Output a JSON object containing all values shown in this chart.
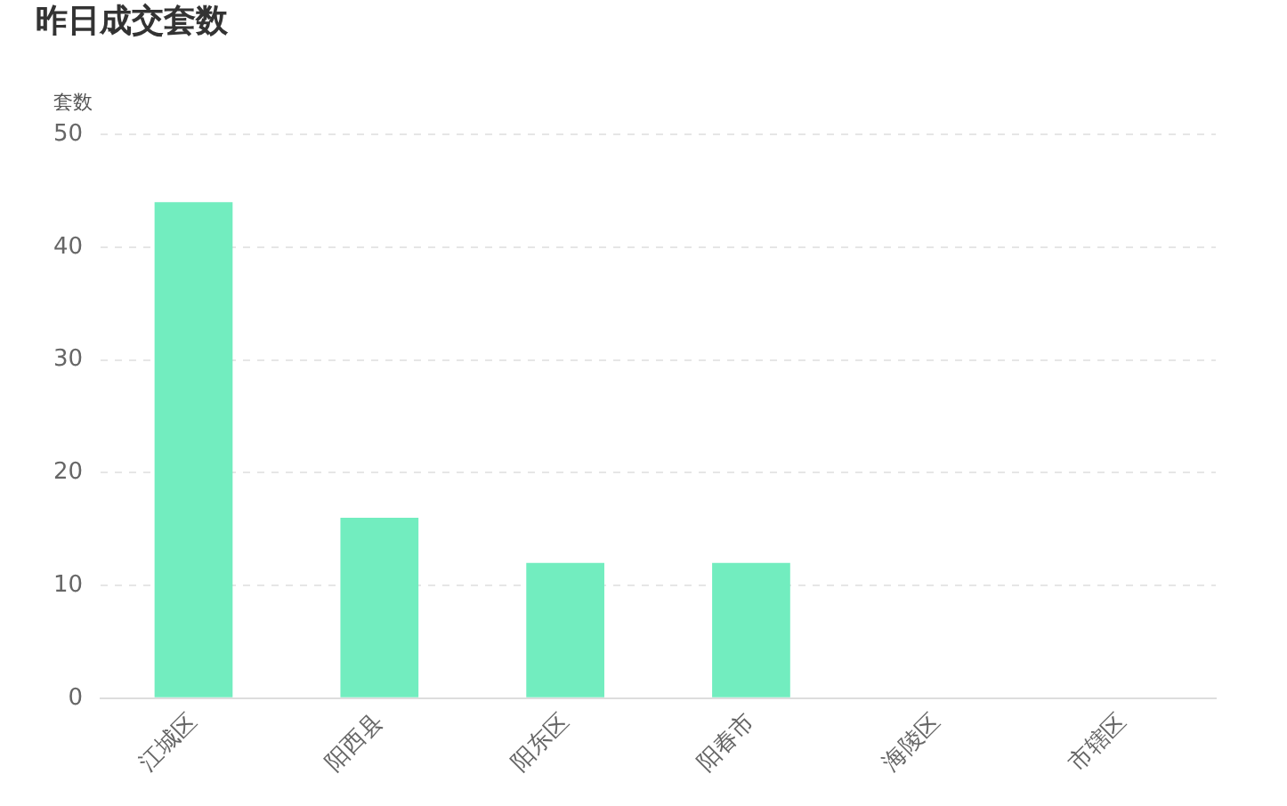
{
  "chart_data": {
    "type": "bar",
    "title": "昨日成交套数",
    "ylabel": "套数",
    "categories": [
      "江城区",
      "阳西县",
      "阳东区",
      "阳春市",
      "海陵区",
      "市辖区"
    ],
    "values": [
      44,
      16,
      12,
      12,
      0,
      0
    ],
    "color": "#72edbf",
    "ylim": [
      0,
      50
    ],
    "yticks": [
      0,
      10,
      20,
      30,
      40,
      50
    ],
    "grid": "y"
  }
}
